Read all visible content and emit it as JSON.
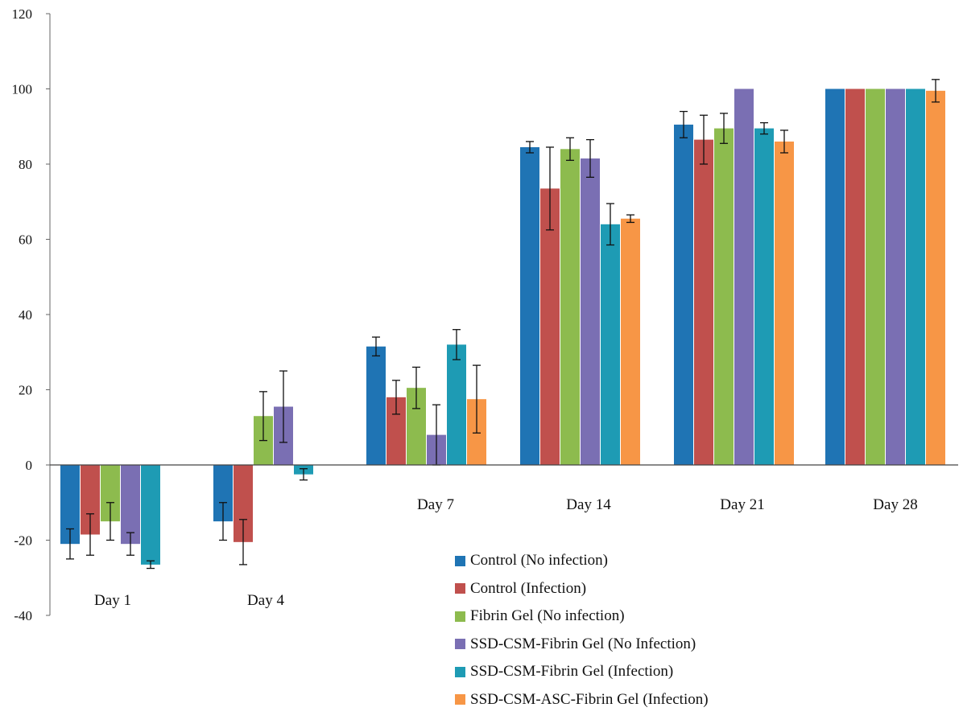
{
  "chart_data": {
    "type": "bar",
    "title": "",
    "xlabel": "",
    "ylabel": "",
    "ylim": [
      -40,
      120
    ],
    "yticks": [
      -40,
      -20,
      0,
      20,
      40,
      60,
      80,
      100,
      120
    ],
    "categories": [
      "Day 1",
      "Day 4",
      "Day 7",
      "Day 14",
      "Day 21",
      "Day 28"
    ],
    "category_label_placement": "Day 1 and Day 4 labels below the lowest bars; Day 7–28 labels just below zero line",
    "legend_placement": "bottom-right",
    "grid": false,
    "series": [
      {
        "name": "Control (No infection)",
        "color": "#1F74B4",
        "values": [
          -21,
          -15,
          31.5,
          84.5,
          90.5,
          100
        ],
        "errors": [
          4,
          5,
          2.5,
          1.5,
          3.5,
          0
        ]
      },
      {
        "name": "Control (Infection)",
        "color": "#C0504D",
        "values": [
          -18.5,
          -20.5,
          18,
          73.5,
          86.5,
          100
        ],
        "errors": [
          5.5,
          6,
          4.5,
          11,
          6.5,
          0
        ]
      },
      {
        "name": "Fibrin Gel (No infection)",
        "color": "#8DBB4E",
        "values": [
          -15,
          13,
          20.5,
          84,
          89.5,
          100
        ],
        "errors": [
          5,
          6.5,
          5.5,
          3,
          4,
          0
        ]
      },
      {
        "name": "SSD-CSM-Fibrin Gel (No Infection)",
        "color": "#7A6FB3",
        "values": [
          -21,
          15.5,
          8,
          81.5,
          100,
          100
        ],
        "errors": [
          3,
          9.5,
          8,
          5,
          0,
          0
        ]
      },
      {
        "name": "SSD-CSM-Fibrin Gel (Infection)",
        "color": "#1E9BB4",
        "values": [
          -26.5,
          -2.5,
          32,
          64,
          89.5,
          100
        ],
        "errors": [
          1,
          1.5,
          4,
          5.5,
          1.5,
          0
        ]
      },
      {
        "name": "SSD-CSM-ASC-Fibrin Gel (Infection)",
        "color": "#F79646",
        "values": [
          null,
          null,
          17.5,
          65.5,
          86,
          99.5
        ],
        "errors": [
          null,
          null,
          9,
          1,
          3,
          3
        ]
      }
    ]
  }
}
